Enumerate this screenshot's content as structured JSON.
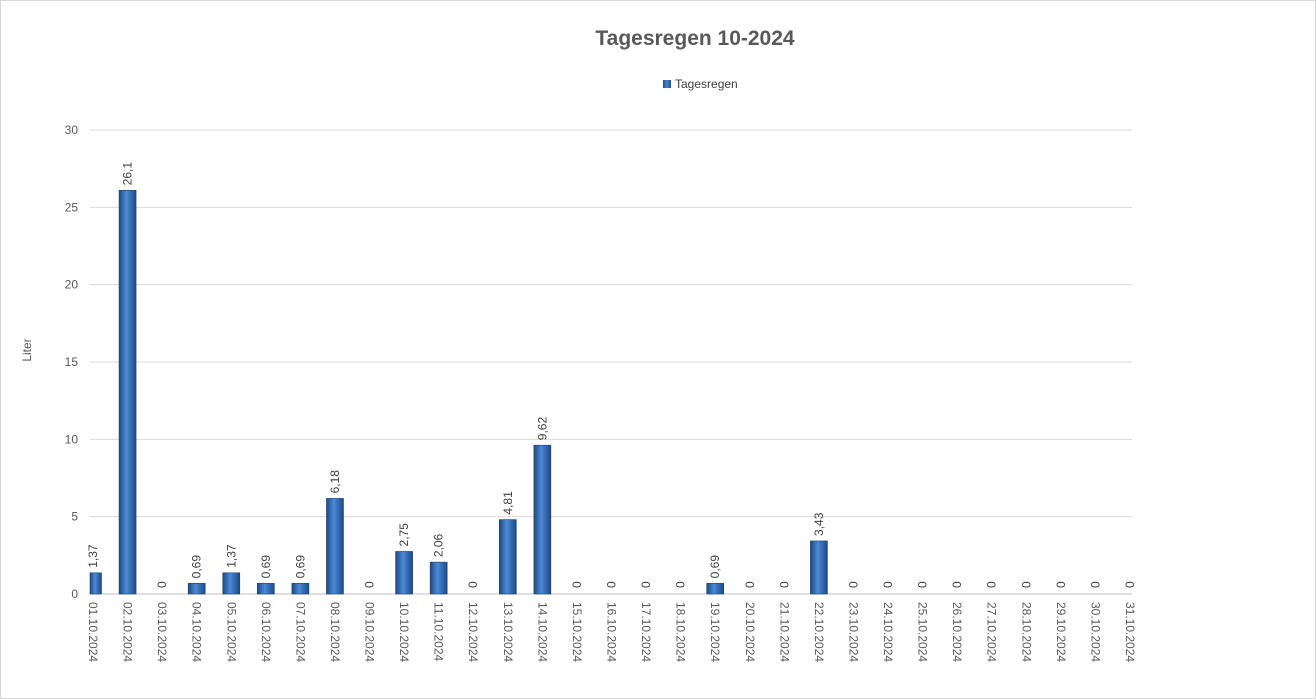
{
  "chart_data": {
    "type": "bar",
    "title": "Tagesregen 10-2024",
    "ylabel": "Liter",
    "xlabel": "",
    "ylim": [
      0,
      30
    ],
    "yticks": [
      "0",
      "5",
      "10",
      "15",
      "20",
      "25",
      "30"
    ],
    "ytick_values": [
      0,
      5,
      10,
      15,
      20,
      25,
      30
    ],
    "grid": true,
    "legend_position": "top-center",
    "categories": [
      "01.10.2024",
      "02.10.2024",
      "03.10.2024",
      "04.10.2024",
      "05.10.2024",
      "06.10.2024",
      "07.10.2024",
      "08.10.2024",
      "09.10.2024",
      "10.10.2024",
      "11.10.2024",
      "12.10.2024",
      "13.10.2024",
      "14.10.2024",
      "15.10.2024",
      "16.10.2024",
      "17.10.2024",
      "18.10.2024",
      "19.10.2024",
      "20.10.2024",
      "21.10.2024",
      "22.10.2024",
      "23.10.2024",
      "24.10.2024",
      "25.10.2024",
      "26.10.2024",
      "27.10.2024",
      "28.10.2024",
      "29.10.2024",
      "30.10.2024",
      "31.10.2024"
    ],
    "series": [
      {
        "name": "Tagesregen",
        "color": "#2e6bb8",
        "values": [
          1.37,
          26.1,
          0,
          0.69,
          1.37,
          0.69,
          0.69,
          6.18,
          0,
          2.75,
          2.06,
          0,
          4.81,
          9.62,
          0,
          0,
          0,
          0,
          0.69,
          0,
          0,
          3.43,
          0,
          0,
          0,
          0,
          0,
          0,
          0,
          0,
          0
        ],
        "labels": [
          "1,37",
          "26,1",
          "0",
          "0,69",
          "1,37",
          "0,69",
          "0,69",
          "6,18",
          "0",
          "2,75",
          "2,06",
          "0",
          "4,81",
          "9,62",
          "0",
          "0",
          "0",
          "0",
          "0,69",
          "0",
          "0",
          "3,43",
          "0",
          "0",
          "0",
          "0",
          "0",
          "0",
          "0",
          "0",
          "0"
        ]
      }
    ]
  }
}
